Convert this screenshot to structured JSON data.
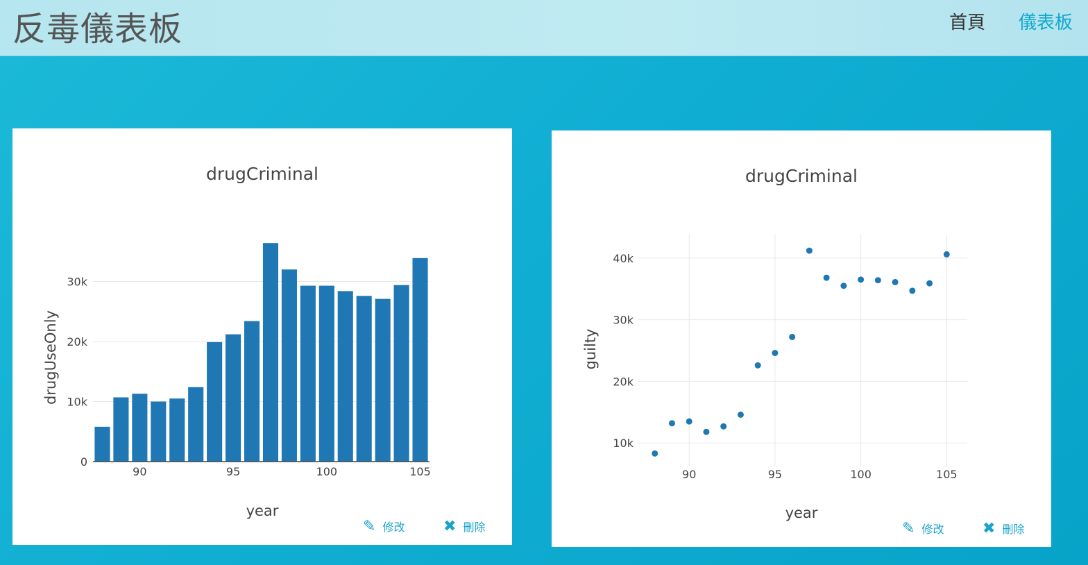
{
  "header": {
    "brand": "反毒儀表板",
    "nav": [
      {
        "label": "首頁"
      },
      {
        "label": "儀表板"
      }
    ]
  },
  "colors": {
    "accent": "#11a7cf",
    "series": "#1f77b4"
  },
  "actions": {
    "edit_label": "修改",
    "delete_label": "刪除",
    "edit_icon": "pencil-icon",
    "delete_icon": "x-icon"
  },
  "charts": [
    {
      "title": "drugCriminal",
      "chart_data": {
        "type": "bar",
        "title": "drugCriminal",
        "xlabel": "year",
        "ylabel": "drugUseOnly",
        "x": [
          88,
          89,
          90,
          91,
          92,
          93,
          94,
          95,
          96,
          97,
          98,
          99,
          100,
          101,
          102,
          103,
          104,
          105
        ],
        "values": [
          5800,
          10700,
          11300,
          10000,
          10500,
          12400,
          19900,
          21200,
          23400,
          36400,
          32000,
          29300,
          29300,
          28400,
          27600,
          27100,
          29400,
          33900
        ],
        "xlim": [
          87.5,
          105.5
        ],
        "ylim": [
          0,
          37000
        ],
        "xticks": [
          "90",
          "95",
          "100",
          "105"
        ],
        "yticks": [
          "0",
          "10k",
          "20k",
          "30k"
        ],
        "grid": "horizontal"
      }
    },
    {
      "title": "drugCriminal",
      "chart_data": {
        "type": "scatter",
        "title": "drugCriminal",
        "xlabel": "year",
        "ylabel": "guilty",
        "x": [
          88,
          89,
          90,
          91,
          92,
          93,
          94,
          95,
          96,
          97,
          98,
          99,
          100,
          101,
          102,
          103,
          104,
          105
        ],
        "values": [
          8300,
          13200,
          13500,
          11800,
          12700,
          14600,
          22600,
          24600,
          27200,
          41200,
          36800,
          35500,
          36500,
          36400,
          36100,
          34700,
          35900,
          40600
        ],
        "xlim": [
          87.0,
          106.2
        ],
        "ylim": [
          6200,
          43800
        ],
        "xticks": [
          "90",
          "95",
          "100",
          "105"
        ],
        "yticks": [
          "10k",
          "20k",
          "30k",
          "40k"
        ],
        "grid": "both"
      }
    }
  ]
}
